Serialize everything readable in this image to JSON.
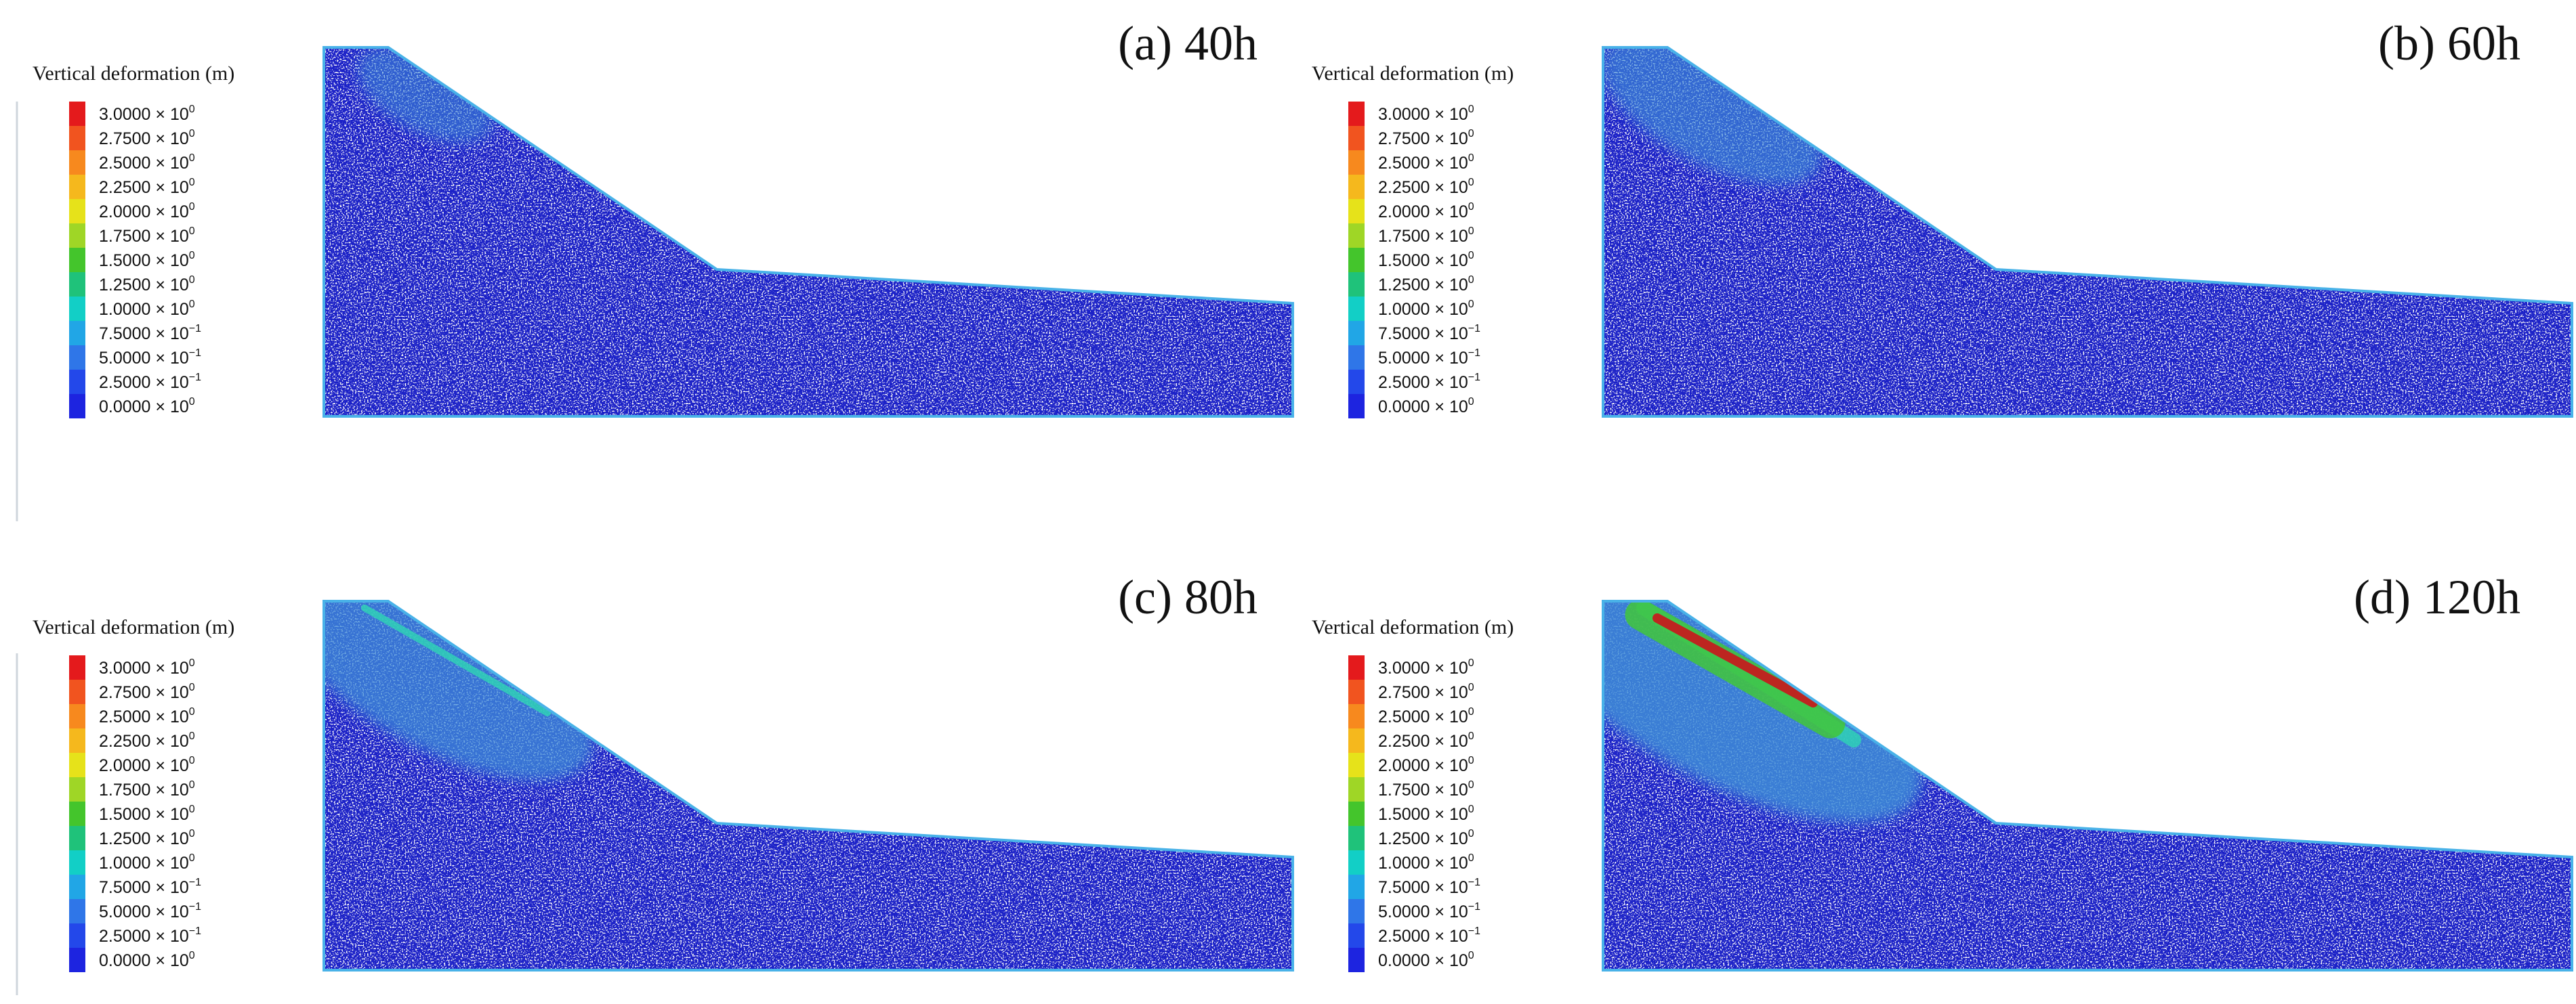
{
  "figure": {
    "panels": [
      {
        "id": "a",
        "label": "(a) 40h",
        "stage": 0
      },
      {
        "id": "b",
        "label": "(b) 60h",
        "stage": 1
      },
      {
        "id": "c",
        "label": "(c) 80h",
        "stage": 2
      },
      {
        "id": "d",
        "label": "(d) 120h",
        "stage": 3
      }
    ],
    "legend": {
      "title": "Vertical deformation  (m)",
      "ticks": [
        {
          "mantissa": "3.0000 × 10",
          "exponent": "0",
          "color": "#e41a1c"
        },
        {
          "mantissa": "2.7500 × 10",
          "exponent": "0",
          "color": "#f1541f"
        },
        {
          "mantissa": "2.5000 × 10",
          "exponent": "0",
          "color": "#f7891e"
        },
        {
          "mantissa": "2.2500 × 10",
          "exponent": "0",
          "color": "#f5b81d"
        },
        {
          "mantissa": "2.0000 × 10",
          "exponent": "0",
          "color": "#e6e21a"
        },
        {
          "mantissa": "1.7500 × 10",
          "exponent": "0",
          "color": "#9fd626"
        },
        {
          "mantissa": "1.5000 × 10",
          "exponent": "0",
          "color": "#44c52c"
        },
        {
          "mantissa": "1.2500 × 10",
          "exponent": "0",
          "color": "#1fc27a"
        },
        {
          "mantissa": "1.0000 × 10",
          "exponent": "0",
          "color": "#12cfc6"
        },
        {
          "mantissa": "7.5000 × 10",
          "exponent": "−1",
          "color": "#21a6e6"
        },
        {
          "mantissa": "5.0000 × 10",
          "exponent": "−1",
          "color": "#2f76e8"
        },
        {
          "mantissa": "2.5000 × 10",
          "exponent": "−1",
          "color": "#2348ea"
        },
        {
          "mantissa": "0.0000 × 10",
          "exponent": "0",
          "color": "#1d24e0"
        }
      ]
    },
    "colors": {
      "particle_base": "#1c22c8",
      "particle_dark": "#0d117a",
      "frame": "#49b2e8"
    }
  }
}
